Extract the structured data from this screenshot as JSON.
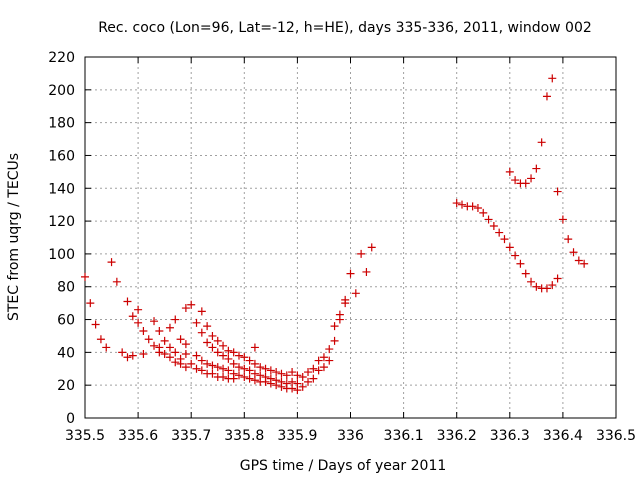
{
  "chart_data": {
    "type": "scatter",
    "title": "Rec. coco (Lon=96, Lat=-12, h=HE), days 335-336, 2011, window 002",
    "xlabel": "GPS time / Days of year 2011",
    "ylabel": "STEC from uqrg / TECUs",
    "xlim": [
      335.5,
      336.5
    ],
    "ylim": [
      0,
      220
    ],
    "x_ticks": [
      "335.5",
      "335.6",
      "335.7",
      "335.8",
      "335.9",
      "336",
      "336.1",
      "336.2",
      "336.3",
      "336.4",
      "336.5"
    ],
    "y_ticks": [
      "0",
      "20",
      "40",
      "60",
      "80",
      "100",
      "120",
      "140",
      "160",
      "180",
      "200",
      "220"
    ],
    "grid": true,
    "legend": "none",
    "marker": "+",
    "color": "#cc0000",
    "series": [
      {
        "points": [
          [
            335.5,
            86
          ],
          [
            335.51,
            70
          ],
          [
            335.52,
            57
          ],
          [
            335.53,
            48
          ],
          [
            335.54,
            43
          ],
          [
            335.55,
            95
          ],
          [
            335.56,
            83
          ],
          [
            335.57,
            40
          ],
          [
            335.58,
            71
          ],
          [
            335.58,
            37
          ],
          [
            335.59,
            62
          ],
          [
            335.59,
            38
          ],
          [
            335.6,
            66
          ],
          [
            335.6,
            58
          ],
          [
            335.61,
            53
          ],
          [
            335.61,
            39
          ],
          [
            335.62,
            48
          ],
          [
            335.63,
            59
          ],
          [
            335.63,
            44
          ],
          [
            335.64,
            53
          ],
          [
            335.64,
            43
          ],
          [
            335.64,
            40
          ],
          [
            335.65,
            47
          ],
          [
            335.65,
            39
          ],
          [
            335.66,
            55
          ],
          [
            335.66,
            43
          ],
          [
            335.66,
            37
          ],
          [
            335.67,
            60
          ],
          [
            335.67,
            40
          ],
          [
            335.67,
            34
          ],
          [
            335.68,
            48
          ],
          [
            335.68,
            36
          ],
          [
            335.68,
            33
          ],
          [
            335.69,
            67
          ],
          [
            335.69,
            45
          ],
          [
            335.69,
            39
          ],
          [
            335.69,
            31
          ],
          [
            335.7,
            69
          ],
          [
            335.7,
            33
          ],
          [
            335.71,
            58
          ],
          [
            335.71,
            38
          ],
          [
            335.71,
            30
          ],
          [
            335.72,
            65
          ],
          [
            335.72,
            52
          ],
          [
            335.72,
            35
          ],
          [
            335.72,
            29
          ],
          [
            335.73,
            56
          ],
          [
            335.73,
            46
          ],
          [
            335.73,
            33
          ],
          [
            335.73,
            27
          ],
          [
            335.74,
            50
          ],
          [
            335.74,
            43
          ],
          [
            335.74,
            32
          ],
          [
            335.74,
            27
          ],
          [
            335.75,
            47
          ],
          [
            335.75,
            40
          ],
          [
            335.75,
            31
          ],
          [
            335.75,
            25
          ],
          [
            335.76,
            44
          ],
          [
            335.76,
            38
          ],
          [
            335.76,
            30
          ],
          [
            335.76,
            25
          ],
          [
            335.77,
            41
          ],
          [
            335.77,
            36
          ],
          [
            335.77,
            29
          ],
          [
            335.77,
            24
          ],
          [
            335.78,
            40
          ],
          [
            335.78,
            33
          ],
          [
            335.78,
            27
          ],
          [
            335.78,
            24
          ],
          [
            335.79,
            38
          ],
          [
            335.79,
            31
          ],
          [
            335.79,
            26
          ],
          [
            335.8,
            37
          ],
          [
            335.8,
            30
          ],
          [
            335.8,
            25
          ],
          [
            335.81,
            35
          ],
          [
            335.81,
            29
          ],
          [
            335.81,
            24
          ],
          [
            335.82,
            43
          ],
          [
            335.82,
            33
          ],
          [
            335.82,
            27
          ],
          [
            335.82,
            23
          ],
          [
            335.83,
            31
          ],
          [
            335.83,
            26
          ],
          [
            335.83,
            22
          ],
          [
            335.84,
            30
          ],
          [
            335.84,
            25
          ],
          [
            335.84,
            22
          ],
          [
            335.85,
            29
          ],
          [
            335.85,
            24
          ],
          [
            335.85,
            21
          ],
          [
            335.86,
            28
          ],
          [
            335.86,
            23
          ],
          [
            335.86,
            20
          ],
          [
            335.87,
            27
          ],
          [
            335.87,
            22
          ],
          [
            335.87,
            19
          ],
          [
            335.88,
            26
          ],
          [
            335.88,
            21
          ],
          [
            335.88,
            18
          ],
          [
            335.89,
            28
          ],
          [
            335.89,
            22
          ],
          [
            335.89,
            18
          ],
          [
            335.9,
            26
          ],
          [
            335.9,
            21
          ],
          [
            335.9,
            17
          ],
          [
            335.91,
            25
          ],
          [
            335.91,
            19
          ],
          [
            335.92,
            28
          ],
          [
            335.92,
            22
          ],
          [
            335.93,
            30
          ],
          [
            335.93,
            24
          ],
          [
            335.94,
            35
          ],
          [
            335.94,
            29
          ],
          [
            335.95,
            37
          ],
          [
            335.95,
            31
          ],
          [
            335.96,
            42
          ],
          [
            335.96,
            35
          ],
          [
            335.97,
            47
          ],
          [
            335.97,
            56
          ],
          [
            335.98,
            60
          ],
          [
            335.98,
            63
          ],
          [
            335.99,
            70
          ],
          [
            335.99,
            72
          ],
          [
            336.0,
            88
          ],
          [
            336.01,
            76
          ],
          [
            336.02,
            100
          ],
          [
            336.03,
            89
          ],
          [
            336.04,
            104
          ],
          [
            336.2,
            131
          ],
          [
            336.21,
            130
          ],
          [
            336.22,
            129
          ],
          [
            336.23,
            129
          ],
          [
            336.24,
            128
          ],
          [
            336.25,
            125
          ],
          [
            336.26,
            121
          ],
          [
            336.27,
            117
          ],
          [
            336.28,
            113
          ],
          [
            336.29,
            109
          ],
          [
            336.3,
            150
          ],
          [
            336.3,
            104
          ],
          [
            336.31,
            145
          ],
          [
            336.31,
            99
          ],
          [
            336.32,
            143
          ],
          [
            336.32,
            94
          ],
          [
            336.33,
            143
          ],
          [
            336.33,
            88
          ],
          [
            336.34,
            146
          ],
          [
            336.34,
            83
          ],
          [
            336.35,
            152
          ],
          [
            336.35,
            80
          ],
          [
            336.36,
            168
          ],
          [
            336.36,
            79
          ],
          [
            336.37,
            196
          ],
          [
            336.37,
            79
          ],
          [
            336.38,
            207
          ],
          [
            336.38,
            81
          ],
          [
            336.39,
            138
          ],
          [
            336.39,
            85
          ],
          [
            336.4,
            121
          ],
          [
            336.41,
            109
          ],
          [
            336.42,
            101
          ],
          [
            336.43,
            96
          ],
          [
            336.44,
            94
          ]
        ]
      }
    ]
  }
}
